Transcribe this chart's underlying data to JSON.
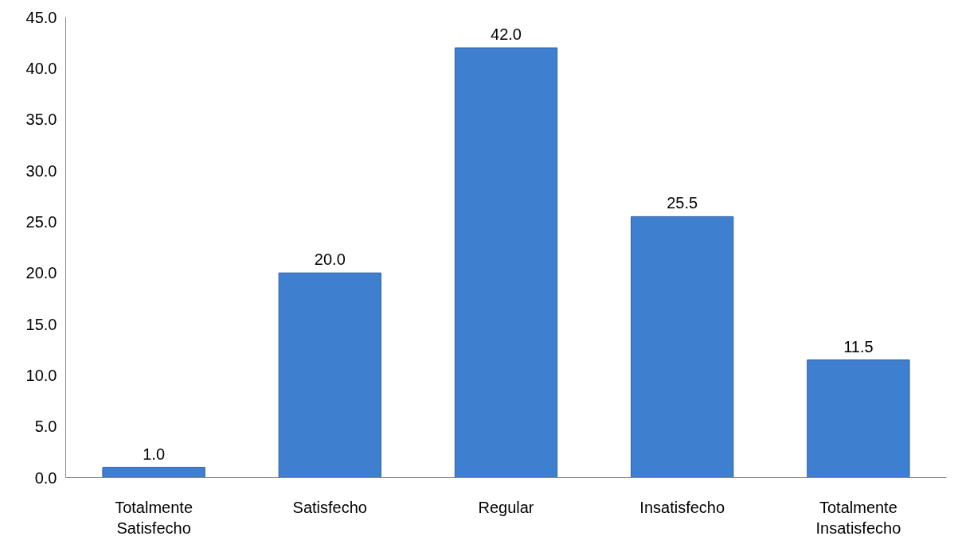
{
  "chart_data": {
    "type": "bar",
    "categories": [
      "Totalmente\nSatisfecho",
      "Satisfecho",
      "Regular",
      "Insatisfecho",
      "Totalmente\nInsatisfecho"
    ],
    "values": [
      1.0,
      20.0,
      42.0,
      25.5,
      11.5
    ],
    "value_labels": [
      "1.0",
      "20.0",
      "42.0",
      "25.5",
      "11.5"
    ],
    "color": "#3f7fcf",
    "ylim": [
      0,
      45
    ],
    "yticks": [
      {
        "value": 0,
        "label": "0.0"
      },
      {
        "value": 5,
        "label": "5.0"
      },
      {
        "value": 10,
        "label": "10.0"
      },
      {
        "value": 15,
        "label": "15.0"
      },
      {
        "value": 20,
        "label": "20.0"
      },
      {
        "value": 25,
        "label": "25.0"
      },
      {
        "value": 30,
        "label": "30.0"
      },
      {
        "value": 35,
        "label": "35.0"
      },
      {
        "value": 40,
        "label": "40.0"
      },
      {
        "value": 45,
        "label": "45.0"
      }
    ],
    "grid": false
  }
}
